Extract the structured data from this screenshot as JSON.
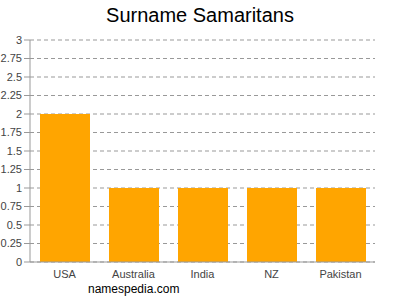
{
  "chart_data": {
    "type": "bar",
    "title": "Surname Samaritans",
    "categories": [
      "USA",
      "Australia",
      "India",
      "NZ",
      "Pakistan"
    ],
    "values": [
      2,
      1,
      1,
      1,
      1
    ],
    "color": "#ffa500",
    "ylim": [
      0,
      3
    ],
    "yticks": [
      0,
      0.25,
      0.5,
      0.75,
      1,
      1.25,
      1.5,
      1.75,
      2,
      2.25,
      2.5,
      2.75,
      3
    ],
    "grid": true,
    "annotations": [
      "namespedia.com"
    ]
  }
}
